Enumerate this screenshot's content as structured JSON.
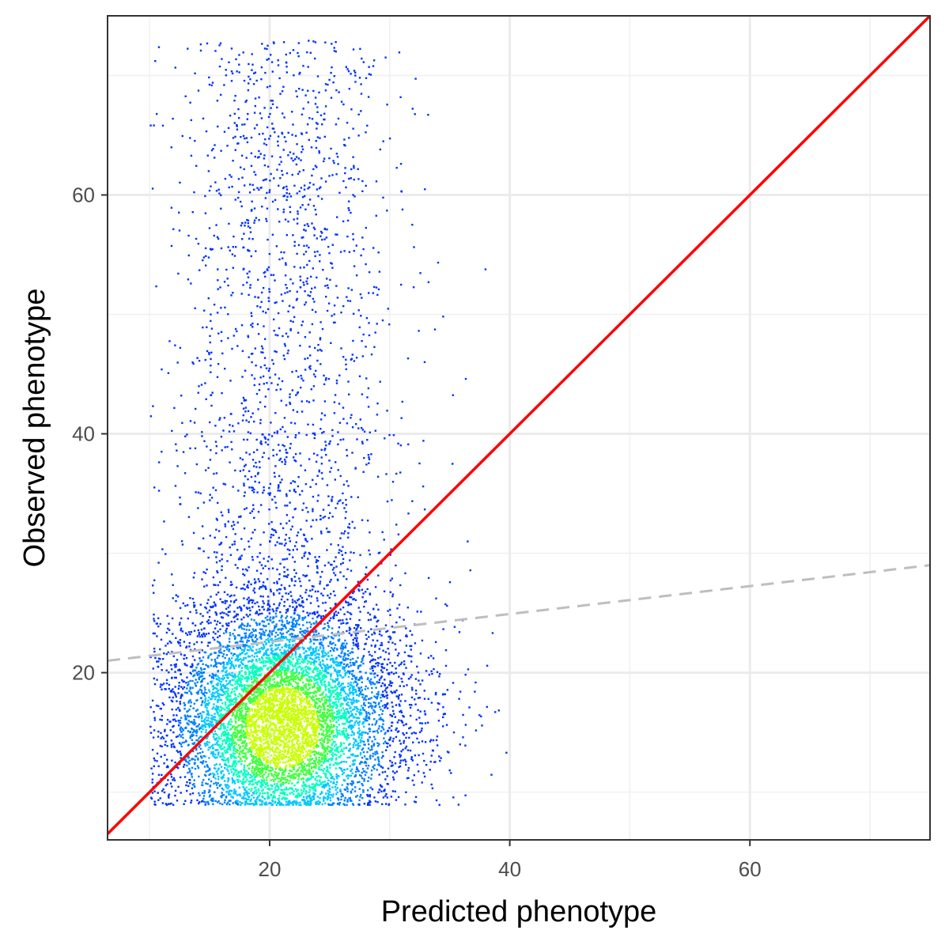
{
  "chart_data": {
    "type": "scatter",
    "title": "",
    "xlabel": "Predicted phenotype",
    "ylabel": "Observed phenotype",
    "xlim": [
      6.5,
      75
    ],
    "ylim": [
      6,
      75
    ],
    "x_ticks": [
      20,
      40,
      60
    ],
    "y_ticks": [
      20,
      40,
      60
    ],
    "x_tick_labels": [
      "20",
      "40",
      "60"
    ],
    "y_tick_labels": [
      "20",
      "40",
      "60"
    ],
    "x_minor_grid": [
      10,
      30,
      50,
      70
    ],
    "y_minor_grid": [
      10,
      30,
      50,
      70
    ],
    "grid": true,
    "legend": "none",
    "density_colors": [
      "#0033ff",
      "#0080ff",
      "#00c8ff",
      "#00ffc0",
      "#40ff40",
      "#c8ff00"
    ],
    "point_cloud": {
      "center": [
        21,
        17
      ],
      "x_range": [
        10,
        40
      ],
      "y_range": [
        9,
        73
      ]
    },
    "reference_lines": [
      {
        "kind": "identity",
        "slope": 1,
        "intercept": 0,
        "color": "#ff0000",
        "style": "solid"
      },
      {
        "kind": "regression",
        "points": [
          [
            6.5,
            21
          ],
          [
            75,
            29
          ]
        ],
        "color": "#bebebe",
        "style": "dashed"
      }
    ]
  }
}
